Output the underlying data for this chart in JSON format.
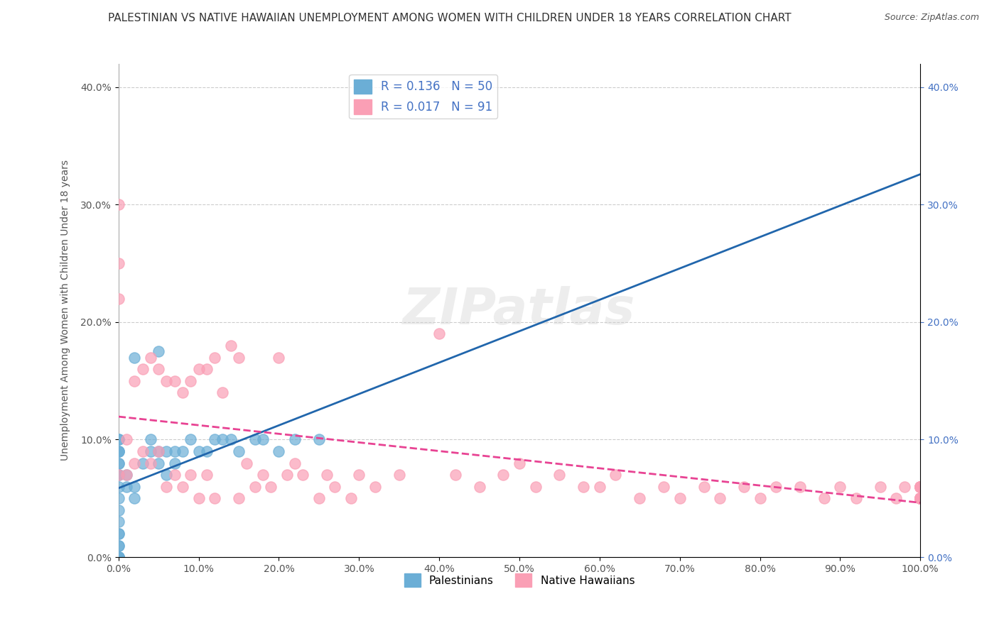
{
  "title": "PALESTINIAN VS NATIVE HAWAIIAN UNEMPLOYMENT AMONG WOMEN WITH CHILDREN UNDER 18 YEARS CORRELATION CHART",
  "source": "Source: ZipAtlas.com",
  "xlabel": "",
  "ylabel": "Unemployment Among Women with Children Under 18 years",
  "xlim": [
    0,
    1.0
  ],
  "ylim": [
    0,
    0.42
  ],
  "xticks": [
    0.0,
    0.1,
    0.2,
    0.3,
    0.4,
    0.5,
    0.6,
    0.7,
    0.8,
    0.9,
    1.0
  ],
  "xticklabels": [
    "0.0%",
    "10.0%",
    "20.0%",
    "30.0%",
    "40.0%",
    "50.0%",
    "60.0%",
    "70.0%",
    "80.0%",
    "90.0%",
    "100.0%"
  ],
  "yticks": [
    0.0,
    0.1,
    0.2,
    0.3,
    0.4
  ],
  "yticklabels": [
    "0.0%",
    "10.0%",
    "20.0%",
    "30.0%",
    "40.0%"
  ],
  "right_yticks": [
    0.0,
    0.1,
    0.2,
    0.3,
    0.4
  ],
  "right_yticklabels": [
    "0.0%",
    "10.0%",
    "20.0%",
    "30.0%",
    "40.0%"
  ],
  "legend_r1": "R = 0.136",
  "legend_n1": "N = 50",
  "legend_r2": "R = 0.017",
  "legend_n2": "N = 91",
  "blue_color": "#6baed6",
  "pink_color": "#fa9fb5",
  "blue_line_color": "#2166ac",
  "pink_line_color": "#e84393",
  "title_fontsize": 11,
  "axis_label_fontsize": 10,
  "tick_fontsize": 10,
  "Palestinians_x": [
    0.0,
    0.0,
    0.0,
    0.0,
    0.0,
    0.0,
    0.0,
    0.0,
    0.0,
    0.0,
    0.0,
    0.0,
    0.0,
    0.0,
    0.0,
    0.0,
    0.0,
    0.0,
    0.0,
    0.0,
    0.0,
    0.0,
    0.01,
    0.01,
    0.02,
    0.02,
    0.02,
    0.03,
    0.04,
    0.04,
    0.05,
    0.05,
    0.05,
    0.06,
    0.06,
    0.07,
    0.07,
    0.08,
    0.09,
    0.1,
    0.11,
    0.12,
    0.13,
    0.14,
    0.15,
    0.17,
    0.18,
    0.2,
    0.22,
    0.25
  ],
  "Palestinians_y": [
    0.0,
    0.0,
    0.0,
    0.0,
    0.0,
    0.01,
    0.01,
    0.02,
    0.02,
    0.03,
    0.04,
    0.05,
    0.06,
    0.07,
    0.07,
    0.08,
    0.08,
    0.09,
    0.09,
    0.09,
    0.1,
    0.1,
    0.06,
    0.07,
    0.05,
    0.06,
    0.17,
    0.08,
    0.09,
    0.1,
    0.08,
    0.09,
    0.175,
    0.07,
    0.09,
    0.08,
    0.09,
    0.09,
    0.1,
    0.09,
    0.09,
    0.1,
    0.1,
    0.1,
    0.09,
    0.1,
    0.1,
    0.09,
    0.1,
    0.1
  ],
  "NativeHawaiians_x": [
    0.0,
    0.0,
    0.0,
    0.0,
    0.01,
    0.01,
    0.02,
    0.02,
    0.03,
    0.03,
    0.04,
    0.04,
    0.05,
    0.05,
    0.06,
    0.06,
    0.07,
    0.07,
    0.08,
    0.08,
    0.09,
    0.09,
    0.1,
    0.1,
    0.11,
    0.11,
    0.12,
    0.12,
    0.13,
    0.14,
    0.15,
    0.15,
    0.16,
    0.17,
    0.18,
    0.19,
    0.2,
    0.21,
    0.22,
    0.23,
    0.25,
    0.26,
    0.27,
    0.29,
    0.3,
    0.32,
    0.35,
    0.4,
    0.42,
    0.45,
    0.48,
    0.5,
    0.52,
    0.55,
    0.58,
    0.6,
    0.62,
    0.65,
    0.68,
    0.7,
    0.73,
    0.75,
    0.78,
    0.8,
    0.82,
    0.85,
    0.88,
    0.9,
    0.92,
    0.95,
    0.97,
    0.98,
    1.0,
    1.0,
    1.0,
    1.0,
    1.0,
    1.0,
    1.0,
    1.0,
    1.0,
    1.0,
    1.0,
    1.0,
    1.0,
    1.0,
    1.0,
    1.0,
    1.0,
    1.0,
    1.0
  ],
  "NativeHawaiians_y": [
    0.25,
    0.3,
    0.07,
    0.22,
    0.07,
    0.1,
    0.08,
    0.15,
    0.09,
    0.16,
    0.08,
    0.17,
    0.09,
    0.16,
    0.06,
    0.15,
    0.07,
    0.15,
    0.06,
    0.14,
    0.07,
    0.15,
    0.05,
    0.16,
    0.07,
    0.16,
    0.05,
    0.17,
    0.14,
    0.18,
    0.05,
    0.17,
    0.08,
    0.06,
    0.07,
    0.06,
    0.17,
    0.07,
    0.08,
    0.07,
    0.05,
    0.07,
    0.06,
    0.05,
    0.07,
    0.06,
    0.07,
    0.19,
    0.07,
    0.06,
    0.07,
    0.08,
    0.06,
    0.07,
    0.06,
    0.06,
    0.07,
    0.05,
    0.06,
    0.05,
    0.06,
    0.05,
    0.06,
    0.05,
    0.06,
    0.06,
    0.05,
    0.06,
    0.05,
    0.06,
    0.05,
    0.06,
    0.05,
    0.06,
    0.05,
    0.06,
    0.05,
    0.06,
    0.05,
    0.06,
    0.05,
    0.06,
    0.05,
    0.06,
    0.05,
    0.06,
    0.05,
    0.06,
    0.05,
    0.06,
    0.05
  ]
}
